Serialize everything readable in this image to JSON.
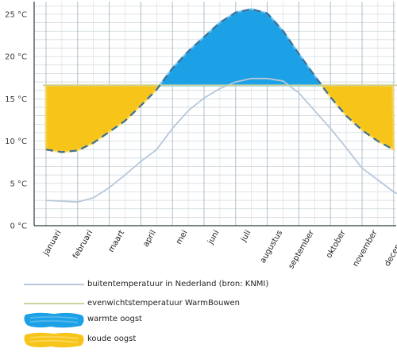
{
  "chart_data": {
    "type": "line",
    "title": "",
    "xlabel": "",
    "ylabel": "",
    "ylim": [
      0,
      26.5
    ],
    "y_ticks": [
      {
        "value": 0,
        "label": "0 °C"
      },
      {
        "value": 5,
        "label": "5 °C"
      },
      {
        "value": 10,
        "label": "10 °C"
      },
      {
        "value": 15,
        "label": "15 °C"
      },
      {
        "value": 20,
        "label": "20 °C"
      },
      {
        "value": 25,
        "label": "25 °C"
      }
    ],
    "categories": [
      "januari",
      "februari",
      "maart",
      "april",
      "mei",
      "juni",
      "juli",
      "augustus",
      "september",
      "oktober",
      "november",
      "december"
    ],
    "grid": true,
    "series": [
      {
        "name": "buitentemperatuur in Nederland (bron: KNMI)",
        "color": "#b8c8da",
        "style": "solid",
        "points": [
          [
            0,
            3.0
          ],
          [
            0.5,
            2.9
          ],
          [
            1,
            2.8
          ],
          [
            1.5,
            3.3
          ],
          [
            2,
            4.5
          ],
          [
            2.5,
            6.0
          ],
          [
            3,
            7.6
          ],
          [
            3.5,
            9.0
          ],
          [
            4,
            11.5
          ],
          [
            4.5,
            13.6
          ],
          [
            5,
            15.1
          ],
          [
            5.5,
            16.2
          ],
          [
            6,
            17.0
          ],
          [
            6.5,
            17.4
          ],
          [
            7,
            17.4
          ],
          [
            7.5,
            17.1
          ],
          [
            8,
            15.7
          ],
          [
            8.5,
            13.6
          ],
          [
            9,
            11.5
          ],
          [
            9.5,
            9.2
          ],
          [
            10,
            6.8
          ],
          [
            10.5,
            5.4
          ],
          [
            11,
            4.0
          ],
          [
            11.5,
            3.0
          ]
        ]
      },
      {
        "name": "evenwichtstemperatuur WarmBouwen",
        "color": "#cbd29a",
        "style": "solid",
        "points": [
          [
            -0.1,
            16.6
          ],
          [
            11.8,
            16.6
          ]
        ]
      },
      {
        "name": "",
        "color": "#3d6f96",
        "style": "dashed",
        "points": [
          [
            0,
            9.0
          ],
          [
            0.5,
            8.7
          ],
          [
            1,
            8.9
          ],
          [
            1.5,
            9.8
          ],
          [
            2,
            11.1
          ],
          [
            2.5,
            12.4
          ],
          [
            3,
            14.2
          ],
          [
            3.5,
            16.1
          ],
          [
            4,
            18.6
          ],
          [
            4.5,
            20.6
          ],
          [
            5,
            22.3
          ],
          [
            5.5,
            24.0
          ],
          [
            6,
            25.2
          ],
          [
            6.5,
            25.6
          ],
          [
            7,
            25.1
          ],
          [
            7.5,
            23.0
          ],
          [
            8,
            20.3
          ],
          [
            8.5,
            17.7
          ],
          [
            9,
            15.2
          ],
          [
            9.5,
            13.0
          ],
          [
            10,
            11.3
          ],
          [
            10.5,
            10.0
          ],
          [
            11,
            9.0
          ]
        ]
      }
    ],
    "harvest_areas": [
      {
        "name": "warmte oogst",
        "color": "#1ca0e6",
        "season": "summer"
      },
      {
        "name": "koude oogst",
        "color": "#f7c51a",
        "season": "winter"
      }
    ]
  },
  "legend": [
    {
      "label": "buitentemperatuur in Nederland (bron: KNMI)",
      "kind": "line",
      "color": "#b8c8da"
    },
    {
      "label": "evenwichtstemperatuur WarmBouwen",
      "kind": "line",
      "color": "#cbd29a"
    },
    {
      "label": "warmte oogst",
      "kind": "patch",
      "color": "#1ca0e6"
    },
    {
      "label": "koude oogst",
      "kind": "patch",
      "color": "#f7c51a"
    }
  ]
}
